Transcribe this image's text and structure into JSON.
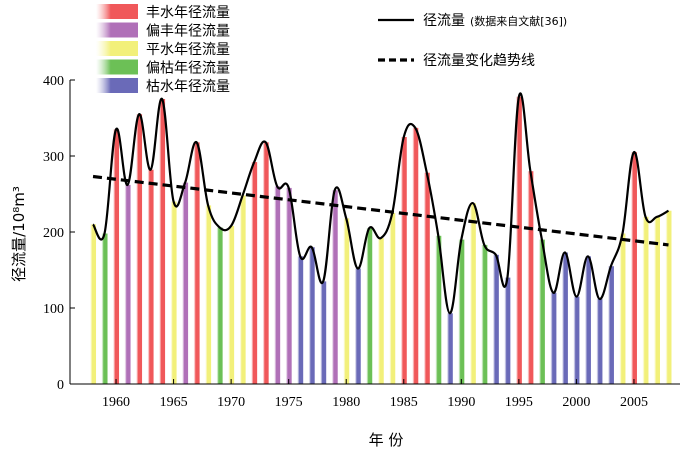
{
  "chart_data": {
    "type": "bar",
    "title": "",
    "xlabel": "年 份",
    "ylabel": "径流量/10⁸m³",
    "ylim": [
      0,
      400
    ],
    "xlim": [
      1956,
      2009
    ],
    "yticks": [
      0,
      100,
      200,
      300,
      400
    ],
    "xticks": [
      1960,
      1965,
      1970,
      1975,
      1980,
      1985,
      1990,
      1995,
      2000,
      2005
    ],
    "grid": false,
    "legend_position": "top",
    "categories_legend": [
      {
        "key": "wet",
        "name": "丰水年径流量",
        "color": "#f0585a"
      },
      {
        "key": "partwet",
        "name": "偏丰年径流量",
        "color": "#b070b8"
      },
      {
        "key": "normal",
        "name": "平水年径流量",
        "color": "#f2f07a"
      },
      {
        "key": "partdry",
        "name": "偏枯年径流量",
        "color": "#6cc056"
      },
      {
        "key": "dry",
        "name": "枯水年径流量",
        "color": "#6a6ab8"
      }
    ],
    "line_legend": [
      {
        "name": "径流量",
        "note": "(数据来自文献[36])",
        "style": "solid"
      },
      {
        "name": "径流量变化趋势线",
        "note": "",
        "style": "dashed"
      }
    ],
    "years": [
      1958,
      1959,
      1960,
      1961,
      1962,
      1963,
      1964,
      1965,
      1966,
      1967,
      1968,
      1969,
      1970,
      1971,
      1972,
      1973,
      1974,
      1975,
      1976,
      1977,
      1978,
      1979,
      1980,
      1981,
      1982,
      1983,
      1984,
      1985,
      1986,
      1987,
      1988,
      1989,
      1990,
      1991,
      1992,
      1993,
      1994,
      1995,
      1996,
      1997,
      1998,
      1999,
      2000,
      2001,
      2002,
      2003,
      2004,
      2005,
      2006,
      2007,
      2008
    ],
    "runoff": [
      210,
      198,
      335,
      262,
      355,
      282,
      375,
      240,
      265,
      318,
      235,
      206,
      208,
      248,
      292,
      318,
      260,
      258,
      168,
      180,
      135,
      255,
      218,
      152,
      205,
      192,
      225,
      325,
      337,
      278,
      195,
      93,
      190,
      238,
      183,
      170,
      140,
      378,
      280,
      190,
      120,
      173,
      115,
      168,
      112,
      155,
      198,
      305,
      220,
      220,
      228
    ],
    "year_class": [
      "normal",
      "partdry",
      "wet",
      "partwet",
      "wet",
      "wet",
      "wet",
      "normal",
      "partwet",
      "wet",
      "normal",
      "partdry",
      "normal",
      "normal",
      "wet",
      "wet",
      "partwet",
      "partwet",
      "dry",
      "dry",
      "dry",
      "partwet",
      "normal",
      "dry",
      "partdry",
      "normal",
      "normal",
      "wet",
      "wet",
      "wet",
      "partdry",
      "dry",
      "partdry",
      "normal",
      "partdry",
      "dry",
      "dry",
      "wet",
      "wet",
      "partdry",
      "dry",
      "dry",
      "dry",
      "dry",
      "dry",
      "dry",
      "normal",
      "wet",
      "normal",
      "normal",
      "normal"
    ],
    "trend": {
      "start_year": 1958,
      "start_value": 273,
      "end_year": 2008,
      "end_value": 183
    }
  }
}
